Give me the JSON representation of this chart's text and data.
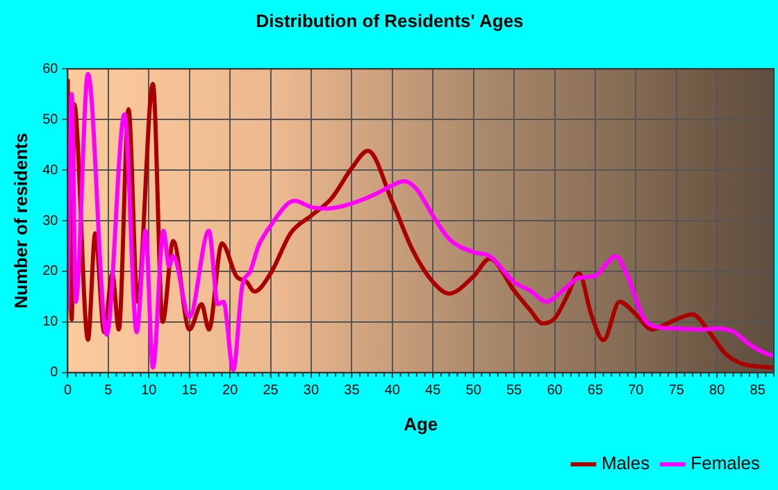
{
  "chart_data": {
    "type": "line",
    "title": "Distribution of Residents' Ages",
    "xlabel": "Age",
    "ylabel": "Number of residents",
    "xlim": [
      0,
      87
    ],
    "xticks": [
      0,
      5,
      10,
      15,
      20,
      25,
      30,
      35,
      40,
      45,
      50,
      55,
      60,
      65,
      70,
      75,
      80,
      85
    ],
    "ylim": [
      0,
      60
    ],
    "yticks": [
      0,
      10,
      20,
      30,
      40,
      50,
      60
    ],
    "grid": true,
    "legend": "bottom right",
    "marker": "none",
    "line_style": "solid",
    "series": [
      {
        "name": "Males",
        "color": "#aa0000",
        "x": [
          0,
          0.5,
          0.8,
          2.5,
          3.4,
          4.5,
          5.5,
          6.3,
          7.5,
          8.6,
          10.5,
          11.7,
          13,
          15,
          16.5,
          17.4,
          19,
          20.8,
          22,
          23,
          25,
          27.5,
          30,
          32.5,
          35,
          37,
          40,
          42.5,
          45,
          47,
          50,
          52,
          55,
          57,
          58.5,
          60,
          61.5,
          63,
          64.5,
          66,
          68,
          70,
          72,
          74,
          77,
          79,
          81,
          83,
          85,
          87
        ],
        "values": [
          58,
          10.5,
          53,
          6.5,
          27.5,
          8,
          19.5,
          8.5,
          52,
          14,
          57,
          10,
          26,
          8.5,
          13.5,
          8.5,
          25.5,
          19,
          18,
          16,
          19.6,
          27.6,
          31,
          34.4,
          40.4,
          43.8,
          33.7,
          24.2,
          17.9,
          15.6,
          19,
          22.5,
          16.2,
          12.3,
          9.7,
          10.7,
          15,
          19.6,
          11.5,
          6.4,
          14,
          11.5,
          8.5,
          9.8,
          11.5,
          8.1,
          3.8,
          1.8,
          1.2,
          1
        ]
      },
      {
        "name": "Females",
        "color": "#ff00ff",
        "x": [
          0,
          0.5,
          1,
          2.5,
          4.8,
          7,
          8.5,
          9.6,
          10.5,
          11.8,
          12.5,
          13,
          15,
          17.4,
          18.5,
          19.2,
          20.4,
          21.5,
          22.5,
          23.5,
          25,
          27,
          28,
          30,
          32,
          35,
          38,
          40,
          41.5,
          43,
          45,
          47,
          50,
          52,
          55,
          57,
          59,
          61,
          63,
          65,
          66.5,
          67.5,
          69,
          71,
          73,
          75,
          78,
          80,
          82,
          84,
          86,
          87
        ],
        "values": [
          12.3,
          55,
          14,
          59,
          7.5,
          51,
          8,
          28,
          1,
          28,
          21,
          23,
          11,
          28,
          13.5,
          14,
          0.5,
          17,
          20,
          25,
          29,
          33.2,
          33.9,
          32.7,
          32.4,
          33.4,
          35.3,
          37,
          37.8,
          36.2,
          31,
          26.4,
          23.8,
          23,
          17.9,
          16.2,
          14,
          16.2,
          18.7,
          19.1,
          21.7,
          23,
          19,
          10.7,
          8.9,
          8.7,
          8.5,
          8.7,
          8.1,
          5.6,
          3.8,
          3.3
        ]
      }
    ]
  }
}
